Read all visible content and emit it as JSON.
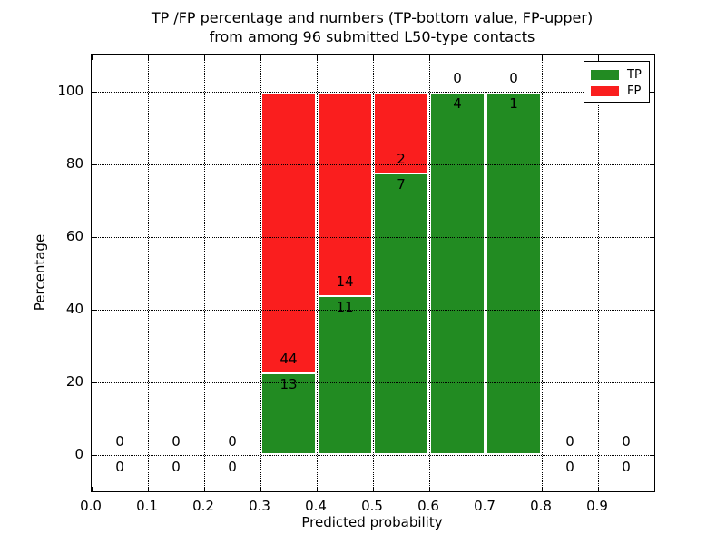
{
  "header": {
    "title_line1": "TP /FP percentage and numbers (TP-bottom value, FP-upper)",
    "title_line2": "from among 96 submitted L50-type contacts"
  },
  "chart_data": {
    "type": "bar",
    "stacked": true,
    "title": "TP /FP percentage and numbers (TP-bottom value, FP-upper) from among 96 submitted L50-type contacts",
    "xlabel": "Predicted probability",
    "ylabel": "Percentage",
    "xlim": [
      0.0,
      1.0
    ],
    "ylim": [
      -10,
      110
    ],
    "xtick_values": [
      0.0,
      0.1,
      0.2,
      0.3,
      0.4,
      0.5,
      0.6,
      0.7,
      0.8,
      0.9
    ],
    "xtick_labels": [
      "0.0",
      "0.1",
      "0.2",
      "0.3",
      "0.4",
      "0.5",
      "0.6",
      "0.7",
      "0.8",
      "0.9"
    ],
    "ytick_values": [
      0,
      20,
      40,
      60,
      80,
      100
    ],
    "ytick_labels": [
      "0",
      "20",
      "40",
      "60",
      "80",
      "100"
    ],
    "grid": {
      "style": "dotted",
      "color": "#000000",
      "above_bars": true
    },
    "legend": {
      "position": "upper right"
    },
    "series": [
      {
        "name": "TP",
        "color": "#228B22"
      },
      {
        "name": "FP",
        "color": "#FA1E1E"
      }
    ],
    "total_contacts": 96,
    "bins": [
      {
        "x_start": 0.0,
        "x_end": 0.1,
        "tp": 0,
        "fp": 0,
        "tp_pct": 0.0,
        "fp_pct": 0.0
      },
      {
        "x_start": 0.1,
        "x_end": 0.2,
        "tp": 0,
        "fp": 0,
        "tp_pct": 0.0,
        "fp_pct": 0.0
      },
      {
        "x_start": 0.2,
        "x_end": 0.3,
        "tp": 0,
        "fp": 0,
        "tp_pct": 0.0,
        "fp_pct": 0.0
      },
      {
        "x_start": 0.3,
        "x_end": 0.4,
        "tp": 13,
        "fp": 44,
        "tp_pct": 22.8,
        "fp_pct": 77.2
      },
      {
        "x_start": 0.4,
        "x_end": 0.5,
        "tp": 11,
        "fp": 14,
        "tp_pct": 44.0,
        "fp_pct": 56.0
      },
      {
        "x_start": 0.5,
        "x_end": 0.6,
        "tp": 7,
        "fp": 2,
        "tp_pct": 77.8,
        "fp_pct": 22.2
      },
      {
        "x_start": 0.6,
        "x_end": 0.7,
        "tp": 4,
        "fp": 0,
        "tp_pct": 100.0,
        "fp_pct": 0.0
      },
      {
        "x_start": 0.7,
        "x_end": 0.8,
        "tp": 1,
        "fp": 0,
        "tp_pct": 100.0,
        "fp_pct": 0.0
      },
      {
        "x_start": 0.8,
        "x_end": 0.9,
        "tp": 0,
        "fp": 0,
        "tp_pct": 0.0,
        "fp_pct": 0.0
      },
      {
        "x_start": 0.9,
        "x_end": 1.0,
        "tp": 0,
        "fp": 0,
        "tp_pct": 0.0,
        "fp_pct": 0.0
      }
    ]
  }
}
